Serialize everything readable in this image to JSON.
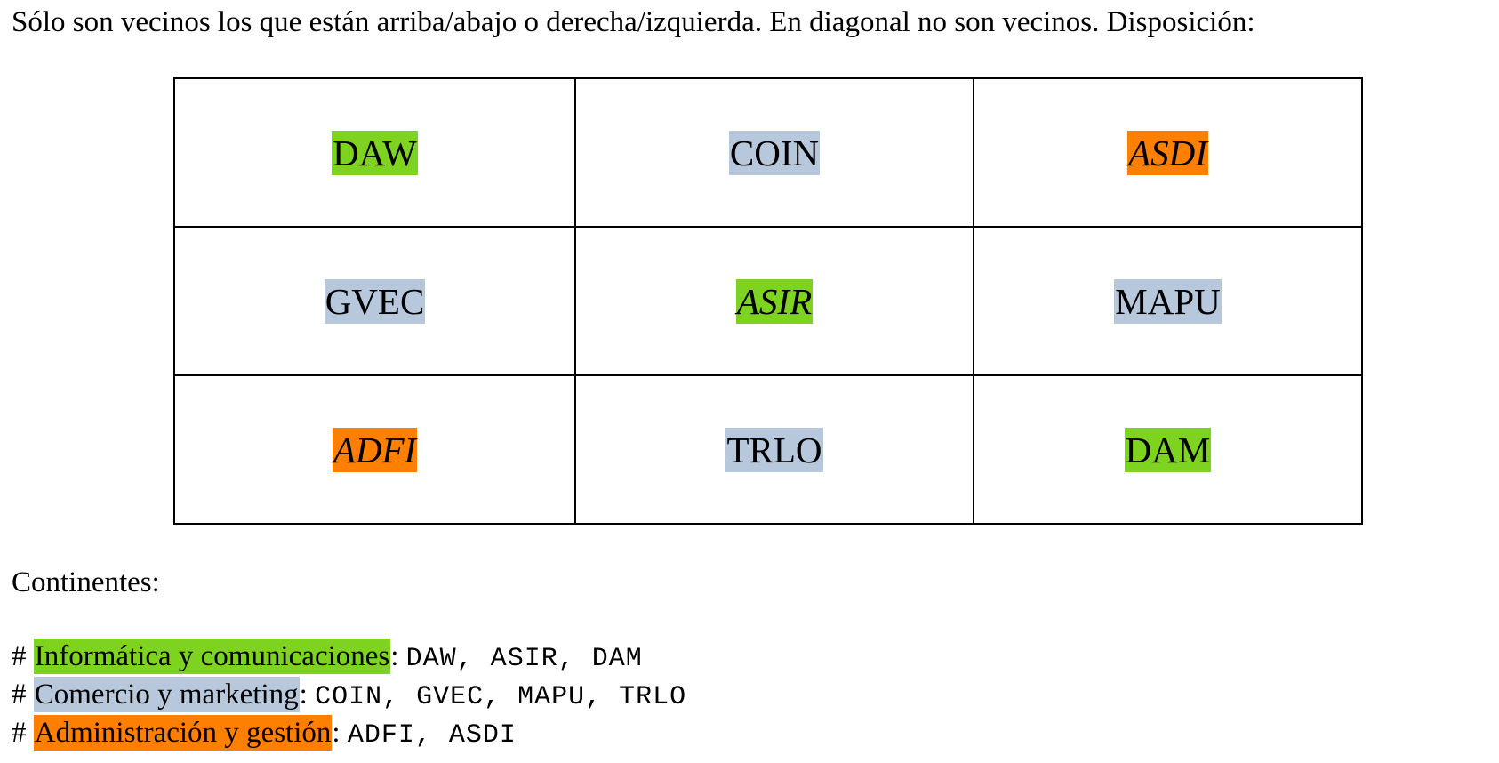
{
  "intro_text": "Sólo son vecinos los que están arriba/abajo o derecha/izquierda. En diagonal no son vecinos. Disposición:",
  "colors": {
    "informatica": "#7ed321",
    "comercio": "#b7c8dc",
    "administracion": "#ff8000"
  },
  "grid": {
    "rows": [
      [
        {
          "label": "DAW",
          "group": "informatica",
          "italic": false
        },
        {
          "label": "COIN",
          "group": "comercio",
          "italic": false
        },
        {
          "label": "ASDI",
          "group": "administracion",
          "italic": true
        }
      ],
      [
        {
          "label": "GVEC",
          "group": "comercio",
          "italic": false
        },
        {
          "label": "ASIR",
          "group": "informatica",
          "italic": true
        },
        {
          "label": "MAPU",
          "group": "comercio",
          "italic": false
        }
      ],
      [
        {
          "label": "ADFI",
          "group": "administracion",
          "italic": true
        },
        {
          "label": "TRLO",
          "group": "comercio",
          "italic": false
        },
        {
          "label": "DAM",
          "group": "informatica",
          "italic": false
        }
      ]
    ]
  },
  "continents_heading": "Continentes:",
  "legend": [
    {
      "hash": "#",
      "name": "Informática y comunicaciones",
      "group": "informatica",
      "codes": "DAW, ASIR, DAM"
    },
    {
      "hash": "#",
      "name": "Comercio y marketing",
      "group": "comercio",
      "codes": "COIN, GVEC, MAPU, TRLO"
    },
    {
      "hash": "#",
      "name": "Administración y gestión",
      "group": "administracion",
      "codes": "ADFI, ASDI"
    }
  ]
}
